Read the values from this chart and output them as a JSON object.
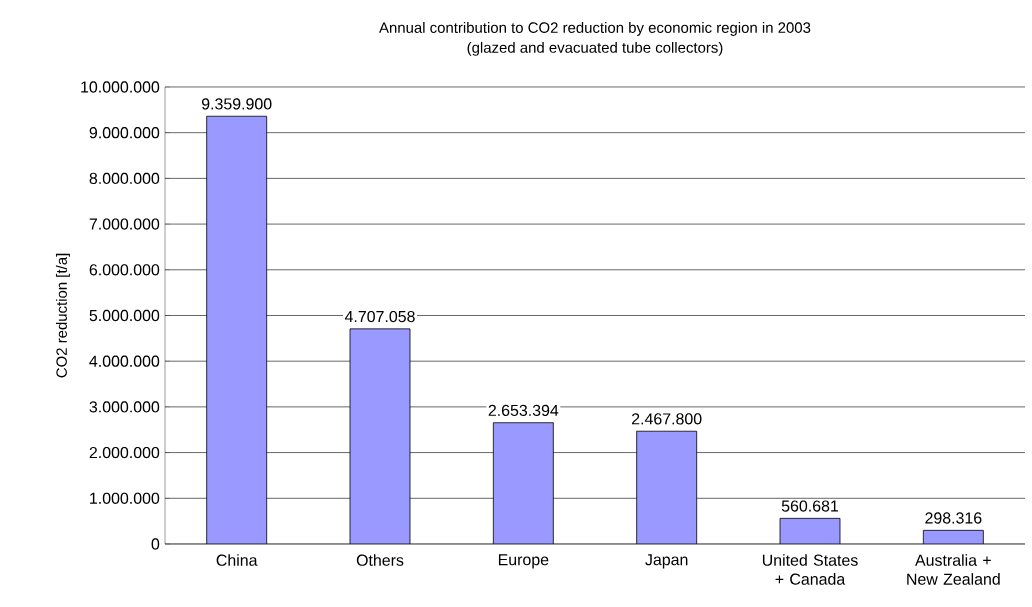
{
  "chart_data": {
    "type": "bar",
    "title": "Annual contribution to CO2 reduction by economic region in 2003",
    "subtitle": "(glazed and evacuated tube collectors)",
    "ylabel": "CO2 reduction [t/a]",
    "categories": [
      "China",
      "Others",
      "Europe",
      "Japan",
      "United States + Canada",
      "Australia + New Zealand"
    ],
    "values": [
      9359900,
      4707058,
      2653394,
      2467800,
      560681,
      298316
    ],
    "value_labels": [
      "9.359.900",
      "4.707.058",
      "2.653.394",
      "2.467.800",
      "560.681",
      "298.316"
    ],
    "color": "#9999ff",
    "ylim": [
      0,
      10000000
    ],
    "yticks": [
      {
        "value": 0,
        "label": "0"
      },
      {
        "value": 1000000,
        "label": "1.000.000"
      },
      {
        "value": 2000000,
        "label": "2.000.000"
      },
      {
        "value": 3000000,
        "label": "3.000.000"
      },
      {
        "value": 4000000,
        "label": "4.000.000"
      },
      {
        "value": 5000000,
        "label": "5.000.000"
      },
      {
        "value": 6000000,
        "label": "6.000.000"
      },
      {
        "value": 7000000,
        "label": "7.000.000"
      },
      {
        "value": 8000000,
        "label": "8.000.000"
      },
      {
        "value": 9000000,
        "label": "9.000.000"
      },
      {
        "value": 10000000,
        "label": "10.000.000"
      }
    ],
    "grid": "y"
  }
}
